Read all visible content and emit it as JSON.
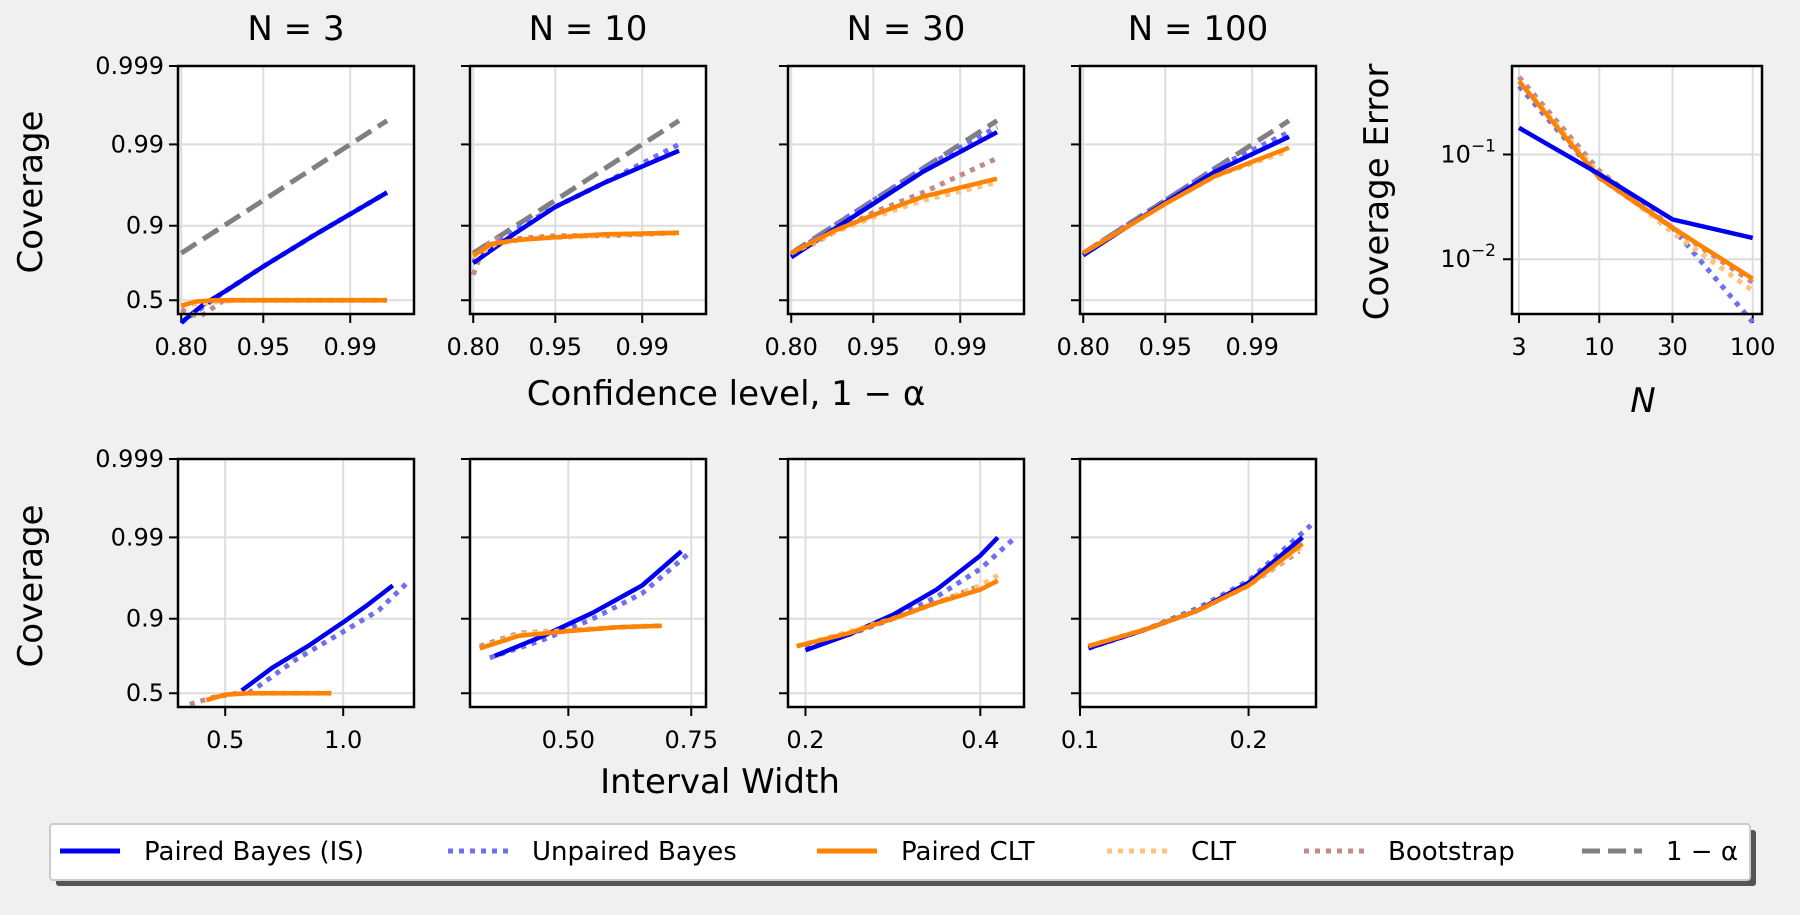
{
  "colors": {
    "paired_bayes": "#0000ee",
    "unpaired_bayes": "#6f6ff0",
    "paired_clt": "#ff8200",
    "clt": "#ffc27a",
    "bootstrap": "#c48a8a",
    "nominal": "#808080",
    "grid": "#dddddd"
  },
  "legend": {
    "items": [
      {
        "key": "paired_bayes",
        "label": "Paired Bayes (IS)",
        "style": "solid"
      },
      {
        "key": "unpaired_bayes",
        "label": "Unpaired Bayes",
        "style": "dotted"
      },
      {
        "key": "paired_clt",
        "label": "Paired CLT",
        "style": "solid"
      },
      {
        "key": "clt",
        "label": "CLT",
        "style": "dotted"
      },
      {
        "key": "bootstrap",
        "label": "Bootstrap",
        "style": "dotted"
      },
      {
        "key": "nominal",
        "label": "1 − α",
        "style": "dashed"
      }
    ]
  },
  "chart_data": [
    {
      "id": "coverage_vs_confidence",
      "type": "line",
      "panel_titles": [
        "N = 3",
        "N = 10",
        "N = 30",
        "N = 100"
      ],
      "xlabel": "Confidence level, 1 − α",
      "ylabel": "Coverage",
      "x_scale": "logit",
      "y_scale": "logit",
      "x_ticks": [
        "0.80",
        "0.95",
        "0.99"
      ],
      "y_ticks": [
        "0.5",
        "0.9",
        "0.99",
        "0.999"
      ],
      "grid": true,
      "panels": [
        {
          "N": 3,
          "series": [
            {
              "key": "nominal",
              "x": [
                0.8,
                0.995
              ],
              "y": [
                0.8,
                0.995
              ]
            },
            {
              "key": "unpaired_bayes",
              "x": [
                0.8,
                0.9,
                0.95,
                0.98,
                0.995
              ],
              "y": [
                0.34,
                0.56,
                0.73,
                0.87,
                0.96
              ]
            },
            {
              "key": "paired_bayes",
              "x": [
                0.8,
                0.83,
                0.86,
                0.9,
                0.95,
                0.98,
                0.995
              ],
              "y": [
                0.34,
                0.4,
                0.47,
                0.56,
                0.73,
                0.87,
                0.96
              ]
            },
            {
              "key": "clt",
              "x": [
                0.8,
                0.86,
                0.92,
                0.995
              ],
              "y": [
                0.46,
                0.48,
                0.5,
                0.5
              ]
            },
            {
              "key": "bootstrap",
              "x": [
                0.8,
                0.85,
                0.9,
                0.95,
                0.995
              ],
              "y": [
                0.43,
                0.38,
                0.5,
                0.5,
                0.5
              ]
            },
            {
              "key": "paired_clt",
              "x": [
                0.8,
                0.84,
                0.88,
                0.93,
                0.995
              ],
              "y": [
                0.46,
                0.49,
                0.5,
                0.5,
                0.5
              ]
            }
          ]
        },
        {
          "N": 10,
          "series": [
            {
              "key": "nominal",
              "x": [
                0.8,
                0.995
              ],
              "y": [
                0.8,
                0.995
              ]
            },
            {
              "key": "bootstrap",
              "x": [
                0.8,
                0.83,
                0.86,
                0.9,
                0.95,
                0.98,
                0.995
              ],
              "y": [
                0.68,
                0.83,
                0.86,
                0.86,
                0.87,
                0.87,
                0.88
              ]
            },
            {
              "key": "unpaired_bayes",
              "x": [
                0.8,
                0.9,
                0.95,
                0.98,
                0.995
              ],
              "y": [
                0.76,
                0.89,
                0.94,
                0.97,
                0.99
              ]
            },
            {
              "key": "paired_bayes",
              "x": [
                0.8,
                0.9,
                0.95,
                0.98,
                0.995
              ],
              "y": [
                0.75,
                0.88,
                0.94,
                0.97,
                0.988
              ]
            },
            {
              "key": "clt",
              "x": [
                0.8,
                0.86,
                0.92,
                0.995
              ],
              "y": [
                0.78,
                0.84,
                0.86,
                0.88
              ]
            },
            {
              "key": "paired_clt",
              "x": [
                0.8,
                0.85,
                0.9,
                0.95,
                0.98,
                0.995
              ],
              "y": [
                0.79,
                0.84,
                0.855,
                0.865,
                0.875,
                0.88
              ]
            }
          ]
        },
        {
          "N": 30,
          "series": [
            {
              "key": "nominal",
              "x": [
                0.8,
                0.995
              ],
              "y": [
                0.8,
                0.995
              ]
            },
            {
              "key": "bootstrap",
              "x": [
                0.8,
                0.9,
                0.95,
                0.98,
                0.995
              ],
              "y": [
                0.79,
                0.88,
                0.93,
                0.96,
                0.985
              ]
            },
            {
              "key": "unpaired_bayes",
              "x": [
                0.8,
                0.9,
                0.95,
                0.98,
                0.995
              ],
              "y": [
                0.79,
                0.9,
                0.95,
                0.98,
                0.994
              ]
            },
            {
              "key": "paired_bayes",
              "x": [
                0.8,
                0.9,
                0.95,
                0.98,
                0.995
              ],
              "y": [
                0.78,
                0.89,
                0.945,
                0.978,
                0.993
              ]
            },
            {
              "key": "clt",
              "x": [
                0.8,
                0.9,
                0.95,
                0.98,
                0.995
              ],
              "y": [
                0.8,
                0.88,
                0.92,
                0.95,
                0.97
              ]
            },
            {
              "key": "paired_clt",
              "x": [
                0.8,
                0.9,
                0.95,
                0.98,
                0.995
              ],
              "y": [
                0.8,
                0.885,
                0.925,
                0.955,
                0.973
              ]
            }
          ]
        },
        {
          "N": 100,
          "series": [
            {
              "key": "nominal",
              "x": [
                0.8,
                0.995
              ],
              "y": [
                0.8,
                0.995
              ]
            },
            {
              "key": "bootstrap",
              "x": [
                0.8,
                0.9,
                0.95,
                0.98,
                0.995
              ],
              "y": [
                0.8,
                0.9,
                0.95,
                0.98,
                0.993
              ]
            },
            {
              "key": "unpaired_bayes",
              "x": [
                0.8,
                0.9,
                0.95,
                0.98,
                0.995
              ],
              "y": [
                0.8,
                0.9,
                0.95,
                0.98,
                0.993
              ]
            },
            {
              "key": "clt",
              "x": [
                0.8,
                0.9,
                0.95,
                0.98,
                0.995
              ],
              "y": [
                0.8,
                0.895,
                0.945,
                0.975,
                0.988
              ]
            },
            {
              "key": "paired_bayes",
              "x": [
                0.8,
                0.9,
                0.95,
                0.98,
                0.995
              ],
              "y": [
                0.79,
                0.895,
                0.947,
                0.978,
                0.992
              ]
            },
            {
              "key": "paired_clt",
              "x": [
                0.8,
                0.9,
                0.95,
                0.98,
                0.995
              ],
              "y": [
                0.8,
                0.895,
                0.945,
                0.975,
                0.989
              ]
            }
          ]
        }
      ]
    },
    {
      "id": "coverage_vs_width",
      "type": "line",
      "xlabel": "Interval Width",
      "ylabel": "Coverage",
      "y_scale": "logit",
      "y_ticks": [
        "0.5",
        "0.9",
        "0.99",
        "0.999"
      ],
      "grid": true,
      "panels": [
        {
          "N": 3,
          "xlim": [
            0.3,
            1.3
          ],
          "x_ticks": [
            0.5,
            1.0
          ],
          "x_tick_labels": [
            "0.5",
            "1.0"
          ],
          "series": [
            {
              "key": "bootstrap",
              "x": [
                0.35,
                0.45,
                0.55
              ],
              "y": [
                0.42,
                0.47,
                0.5
              ]
            },
            {
              "key": "unpaired_bayes",
              "x": [
                0.6,
                0.8,
                1.0,
                1.15,
                1.28
              ],
              "y": [
                0.5,
                0.73,
                0.86,
                0.92,
                0.965
              ]
            },
            {
              "key": "paired_bayes",
              "x": [
                0.57,
                0.7,
                0.85,
                1.0,
                1.1,
                1.21
              ],
              "y": [
                0.52,
                0.68,
                0.8,
                0.89,
                0.93,
                0.96
              ]
            },
            {
              "key": "clt",
              "x": [
                0.42,
                0.5,
                0.6,
                0.95
              ],
              "y": [
                0.45,
                0.49,
                0.5,
                0.5
              ]
            },
            {
              "key": "paired_clt",
              "x": [
                0.42,
                0.5,
                0.6,
                0.75,
                0.95
              ],
              "y": [
                0.45,
                0.49,
                0.5,
                0.5,
                0.5
              ]
            }
          ]
        },
        {
          "N": 10,
          "xlim": [
            0.3,
            0.78
          ],
          "x_ticks": [
            0.5,
            0.75
          ],
          "x_tick_labels": [
            "0.50",
            "0.75"
          ],
          "series": [
            {
              "key": "bootstrap",
              "x": [
                0.32,
                0.4,
                0.5,
                0.6,
                0.69
              ],
              "y": [
                0.8,
                0.855,
                0.865,
                0.875,
                0.88
              ]
            },
            {
              "key": "unpaired_bayes",
              "x": [
                0.34,
                0.45,
                0.55,
                0.65,
                0.75
              ],
              "y": [
                0.74,
                0.83,
                0.9,
                0.95,
                0.985
              ]
            },
            {
              "key": "paired_bayes",
              "x": [
                0.35,
                0.45,
                0.55,
                0.65,
                0.73
              ],
              "y": [
                0.75,
                0.845,
                0.915,
                0.96,
                0.985
              ]
            },
            {
              "key": "clt",
              "x": [
                0.32,
                0.4,
                0.5,
                0.6,
                0.69
              ],
              "y": [
                0.79,
                0.85,
                0.865,
                0.875,
                0.88
              ]
            },
            {
              "key": "paired_clt",
              "x": [
                0.32,
                0.4,
                0.5,
                0.6,
                0.69
              ],
              "y": [
                0.79,
                0.845,
                0.862,
                0.875,
                0.88
              ]
            }
          ]
        },
        {
          "N": 30,
          "xlim": [
            0.18,
            0.45
          ],
          "x_ticks": [
            0.2,
            0.4
          ],
          "x_tick_labels": [
            "0.2",
            "0.4"
          ],
          "series": [
            {
              "key": "bootstrap",
              "x": [
                0.2,
                0.25,
                0.3,
                0.35,
                0.4
              ],
              "y": [
                0.8,
                0.85,
                0.9,
                0.935,
                0.96
              ]
            },
            {
              "key": "unpaired_bayes",
              "x": [
                0.2,
                0.25,
                0.3,
                0.35,
                0.4,
                0.44
              ],
              "y": [
                0.79,
                0.85,
                0.9,
                0.945,
                0.975,
                0.99
              ]
            },
            {
              "key": "paired_bayes",
              "x": [
                0.2,
                0.25,
                0.3,
                0.35,
                0.4,
                0.42
              ],
              "y": [
                0.78,
                0.85,
                0.91,
                0.955,
                0.983,
                0.99
              ]
            },
            {
              "key": "clt",
              "x": [
                0.19,
                0.25,
                0.3,
                0.35,
                0.4,
                0.42
              ],
              "y": [
                0.8,
                0.86,
                0.9,
                0.935,
                0.96,
                0.97
              ]
            },
            {
              "key": "paired_clt",
              "x": [
                0.19,
                0.25,
                0.3,
                0.35,
                0.4,
                0.42
              ],
              "y": [
                0.8,
                0.855,
                0.9,
                0.935,
                0.955,
                0.965
              ]
            }
          ]
        },
        {
          "N": 100,
          "xlim": [
            0.1,
            0.24
          ],
          "x_ticks": [
            0.1,
            0.2
          ],
          "x_tick_labels": [
            "0.1",
            "0.2"
          ],
          "series": [
            {
              "key": "bootstrap",
              "x": [
                0.105,
                0.14,
                0.17,
                0.2,
                0.23
              ],
              "y": [
                0.8,
                0.87,
                0.92,
                0.96,
                0.985
              ]
            },
            {
              "key": "unpaired_bayes",
              "x": [
                0.105,
                0.14,
                0.17,
                0.2,
                0.237
              ],
              "y": [
                0.79,
                0.87,
                0.925,
                0.965,
                0.993
              ]
            },
            {
              "key": "clt",
              "x": [
                0.105,
                0.14,
                0.17,
                0.2,
                0.232
              ],
              "y": [
                0.8,
                0.87,
                0.92,
                0.96,
                0.987
              ]
            },
            {
              "key": "paired_bayes",
              "x": [
                0.105,
                0.14,
                0.17,
                0.2,
                0.232
              ],
              "y": [
                0.79,
                0.87,
                0.92,
                0.963,
                0.99
              ]
            },
            {
              "key": "paired_clt",
              "x": [
                0.105,
                0.14,
                0.17,
                0.2,
                0.232
              ],
              "y": [
                0.8,
                0.87,
                0.92,
                0.96,
                0.988
              ]
            }
          ]
        }
      ]
    },
    {
      "id": "coverage_error_vs_n",
      "type": "line",
      "xlabel": "N",
      "ylabel": "Coverage Error",
      "x_scale": "log",
      "y_scale": "log",
      "x": [
        3,
        10,
        30,
        100
      ],
      "x_tick_labels": [
        "3",
        "10",
        "30",
        "100"
      ],
      "y_ticks": [
        0.1,
        0.01
      ],
      "ylim": [
        0.003,
        0.7
      ],
      "grid": true,
      "series": [
        {
          "key": "unpaired_bayes",
          "values": [
            0.45,
            0.06,
            0.02,
            0.0025
          ]
        },
        {
          "key": "bootstrap",
          "values": [
            0.55,
            0.07,
            0.02,
            0.006
          ]
        },
        {
          "key": "clt",
          "values": [
            0.5,
            0.065,
            0.018,
            0.005
          ]
        },
        {
          "key": "paired_clt",
          "values": [
            0.5,
            0.06,
            0.02,
            0.0065
          ]
        },
        {
          "key": "paired_bayes",
          "values": [
            0.18,
            0.065,
            0.024,
            0.016
          ]
        }
      ]
    }
  ]
}
